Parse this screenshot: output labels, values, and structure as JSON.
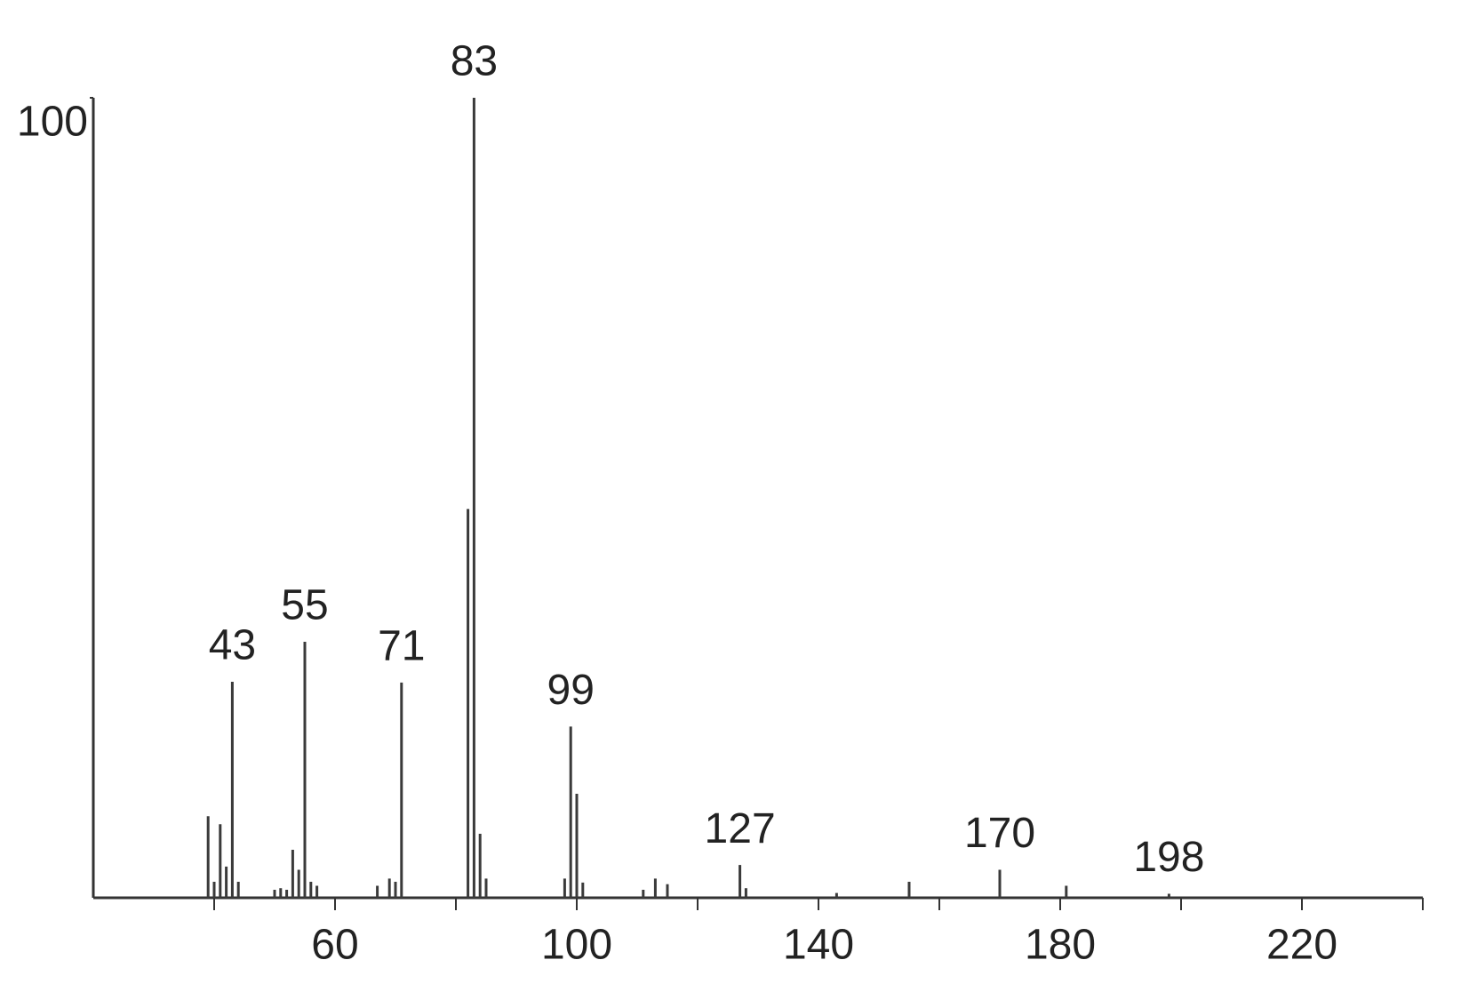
{
  "chart_data": {
    "type": "bar",
    "color": "#3a3a3a",
    "x": [
      39,
      40,
      41,
      42,
      43,
      44,
      50,
      51,
      52,
      53,
      54,
      55,
      56,
      57,
      67,
      69,
      70,
      71,
      82,
      83,
      84,
      85,
      98,
      99,
      100,
      101,
      111,
      113,
      115,
      127,
      128,
      143,
      155,
      170,
      181,
      198
    ],
    "values": [
      10.2,
      2,
      9.2,
      3.9,
      27,
      2,
      1,
      1.2,
      1,
      6,
      3.5,
      32,
      2,
      1.5,
      1.5,
      2.4,
      2,
      26.9,
      48.6,
      100,
      8,
      2.4,
      2.4,
      21.4,
      13,
      1.9,
      1,
      2.4,
      1.7,
      4.1,
      1.2,
      0.6,
      2,
      3.5,
      1.5,
      0.5
    ],
    "peak_labels": [
      43,
      55,
      71,
      83,
      99,
      127,
      170,
      198
    ],
    "xlim": [
      20,
      240
    ],
    "xticks": [
      60,
      100,
      140,
      180,
      220
    ],
    "minor_xticks": [
      40,
      80,
      120,
      160,
      200,
      240
    ],
    "ylim": [
      0,
      100
    ],
    "yticks": [
      100
    ]
  }
}
